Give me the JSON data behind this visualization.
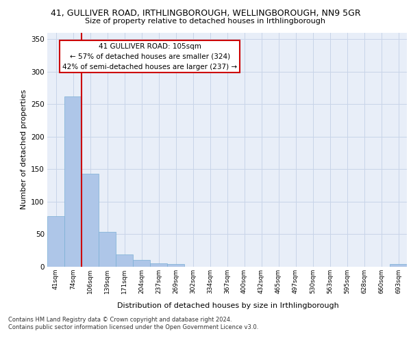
{
  "title": "41, GULLIVER ROAD, IRTHLINGBOROUGH, WELLINGBOROUGH, NN9 5GR",
  "subtitle": "Size of property relative to detached houses in Irthlingborough",
  "xlabel": "Distribution of detached houses by size in Irthlingborough",
  "ylabel": "Number of detached properties",
  "bins": [
    "41sqm",
    "74sqm",
    "106sqm",
    "139sqm",
    "171sqm",
    "204sqm",
    "237sqm",
    "269sqm",
    "302sqm",
    "334sqm",
    "367sqm",
    "400sqm",
    "432sqm",
    "465sqm",
    "497sqm",
    "530sqm",
    "563sqm",
    "595sqm",
    "628sqm",
    "660sqm",
    "693sqm"
  ],
  "values": [
    78,
    262,
    143,
    54,
    19,
    10,
    5,
    4,
    0,
    0,
    0,
    0,
    0,
    0,
    0,
    0,
    0,
    0,
    0,
    0,
    4
  ],
  "bar_color": "#aec6e8",
  "bar_edge_color": "#7aafd4",
  "grid_color": "#c8d4e8",
  "background_color": "#e8eef8",
  "annotation_line1": "41 GULLIVER ROAD: 105sqm",
  "annotation_line2": "← 57% of detached houses are smaller (324)",
  "annotation_line3": "42% of semi-detached houses are larger (237) →",
  "annotation_box_color": "#ffffff",
  "annotation_border_color": "#cc0000",
  "marker_line_color": "#cc0000",
  "ylim": [
    0,
    360
  ],
  "yticks": [
    0,
    50,
    100,
    150,
    200,
    250,
    300,
    350
  ],
  "footer1": "Contains HM Land Registry data © Crown copyright and database right 2024.",
  "footer2": "Contains public sector information licensed under the Open Government Licence v3.0."
}
